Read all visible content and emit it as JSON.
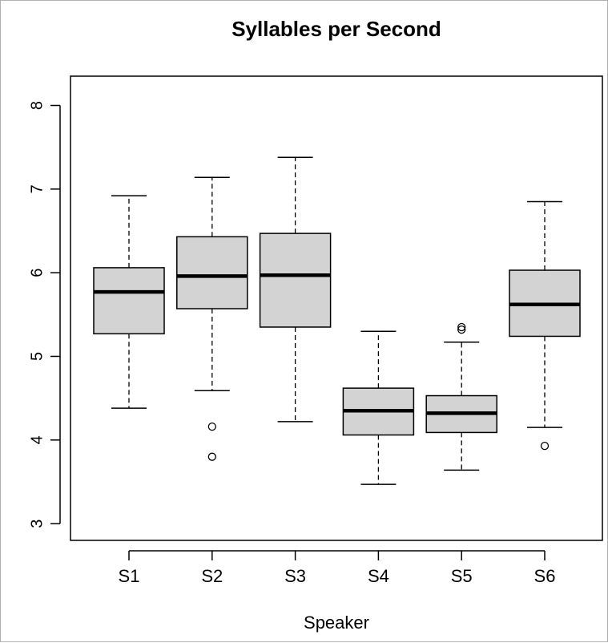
{
  "chart_data": {
    "type": "boxplot",
    "title": "Syllables per Second",
    "xlabel": "Speaker",
    "ylabel": "",
    "ylim": [
      2.8,
      8.35
    ],
    "yticks": [
      3,
      4,
      5,
      6,
      7,
      8
    ],
    "categories": [
      "S1",
      "S2",
      "S3",
      "S4",
      "S5",
      "S6"
    ],
    "boxes": [
      {
        "name": "S1",
        "whisker_low": 4.38,
        "q1": 5.27,
        "median": 5.77,
        "q3": 6.06,
        "whisker_high": 6.92,
        "outliers": []
      },
      {
        "name": "S2",
        "whisker_low": 4.59,
        "q1": 5.57,
        "median": 5.96,
        "q3": 6.43,
        "whisker_high": 7.14,
        "outliers": [
          4.16,
          3.8
        ]
      },
      {
        "name": "S3",
        "whisker_low": 4.22,
        "q1": 5.35,
        "median": 5.97,
        "q3": 6.47,
        "whisker_high": 7.38,
        "outliers": []
      },
      {
        "name": "S4",
        "whisker_low": 3.47,
        "q1": 4.06,
        "median": 4.35,
        "q3": 4.62,
        "whisker_high": 5.3,
        "outliers": []
      },
      {
        "name": "S5",
        "whisker_low": 3.64,
        "q1": 4.09,
        "median": 4.32,
        "q3": 4.53,
        "whisker_high": 5.17,
        "outliers": [
          5.35,
          5.32
        ]
      },
      {
        "name": "S6",
        "whisker_low": 4.15,
        "q1": 5.24,
        "median": 5.62,
        "q3": 6.03,
        "whisker_high": 6.85,
        "outliers": [
          3.93
        ]
      }
    ],
    "box_fill": "#d3d3d3",
    "line_color": "#000000",
    "grid": false,
    "legend": "none"
  }
}
